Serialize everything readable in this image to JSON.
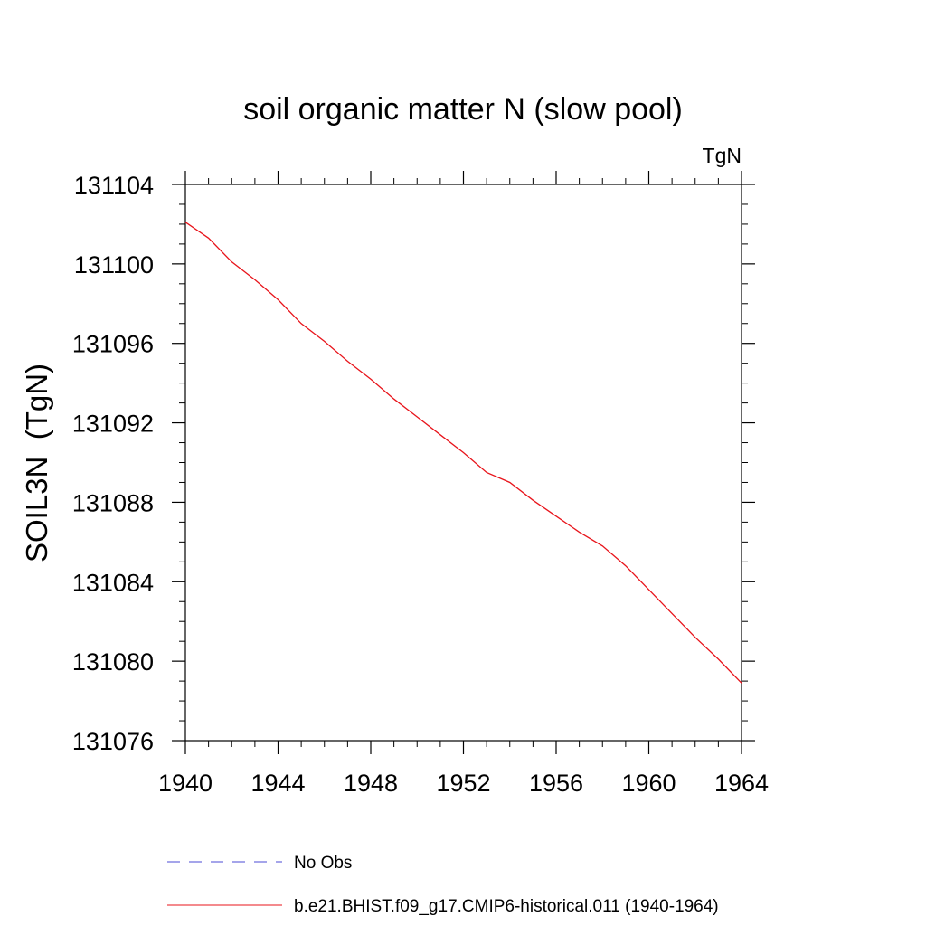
{
  "chart_data": {
    "type": "line",
    "title": "soil organic matter N (slow pool)",
    "units_label": "TgN",
    "xlabel": "",
    "ylabel": "SOIL3N  (TgN)",
    "xlim": [
      1940,
      1964
    ],
    "ylim": [
      131076,
      131104
    ],
    "x_ticks": [
      1940,
      1944,
      1948,
      1952,
      1956,
      1960,
      1964
    ],
    "x_tick_labels": [
      "1940",
      "1944",
      "1948",
      "1952",
      "1956",
      "1960",
      "1964"
    ],
    "x_minor_step": 1,
    "y_ticks": [
      131076,
      131080,
      131084,
      131088,
      131092,
      131096,
      131100,
      131104
    ],
    "y_tick_labels": [
      "131076",
      "131080",
      "131084",
      "131088",
      "131092",
      "131096",
      "131100",
      "131104"
    ],
    "y_minor_step": 1,
    "grid": false,
    "legend_position": "bottom",
    "series": [
      {
        "name": "No Obs",
        "color": "#4b4bd6",
        "style": "dashed",
        "x": [],
        "y": []
      },
      {
        "name": "b.e21.BHIST.f09_g17.CMIP6-historical.011 (1940-1964)",
        "color": "#e8141b",
        "style": "solid",
        "x": [
          1940,
          1941,
          1942,
          1943,
          1944,
          1945,
          1946,
          1947,
          1948,
          1949,
          1950,
          1951,
          1952,
          1953,
          1954,
          1955,
          1956,
          1957,
          1958,
          1959,
          1960,
          1961,
          1962,
          1963,
          1964
        ],
        "y": [
          131102.1,
          131101.3,
          131100.1,
          131099.2,
          131098.2,
          131097.0,
          131096.1,
          131095.1,
          131094.2,
          131093.2,
          131092.3,
          131091.4,
          131090.5,
          131089.5,
          131089.0,
          131088.1,
          131087.3,
          131086.5,
          131085.8,
          131084.8,
          131083.6,
          131082.4,
          131081.2,
          131080.1,
          131078.9
        ]
      }
    ]
  }
}
